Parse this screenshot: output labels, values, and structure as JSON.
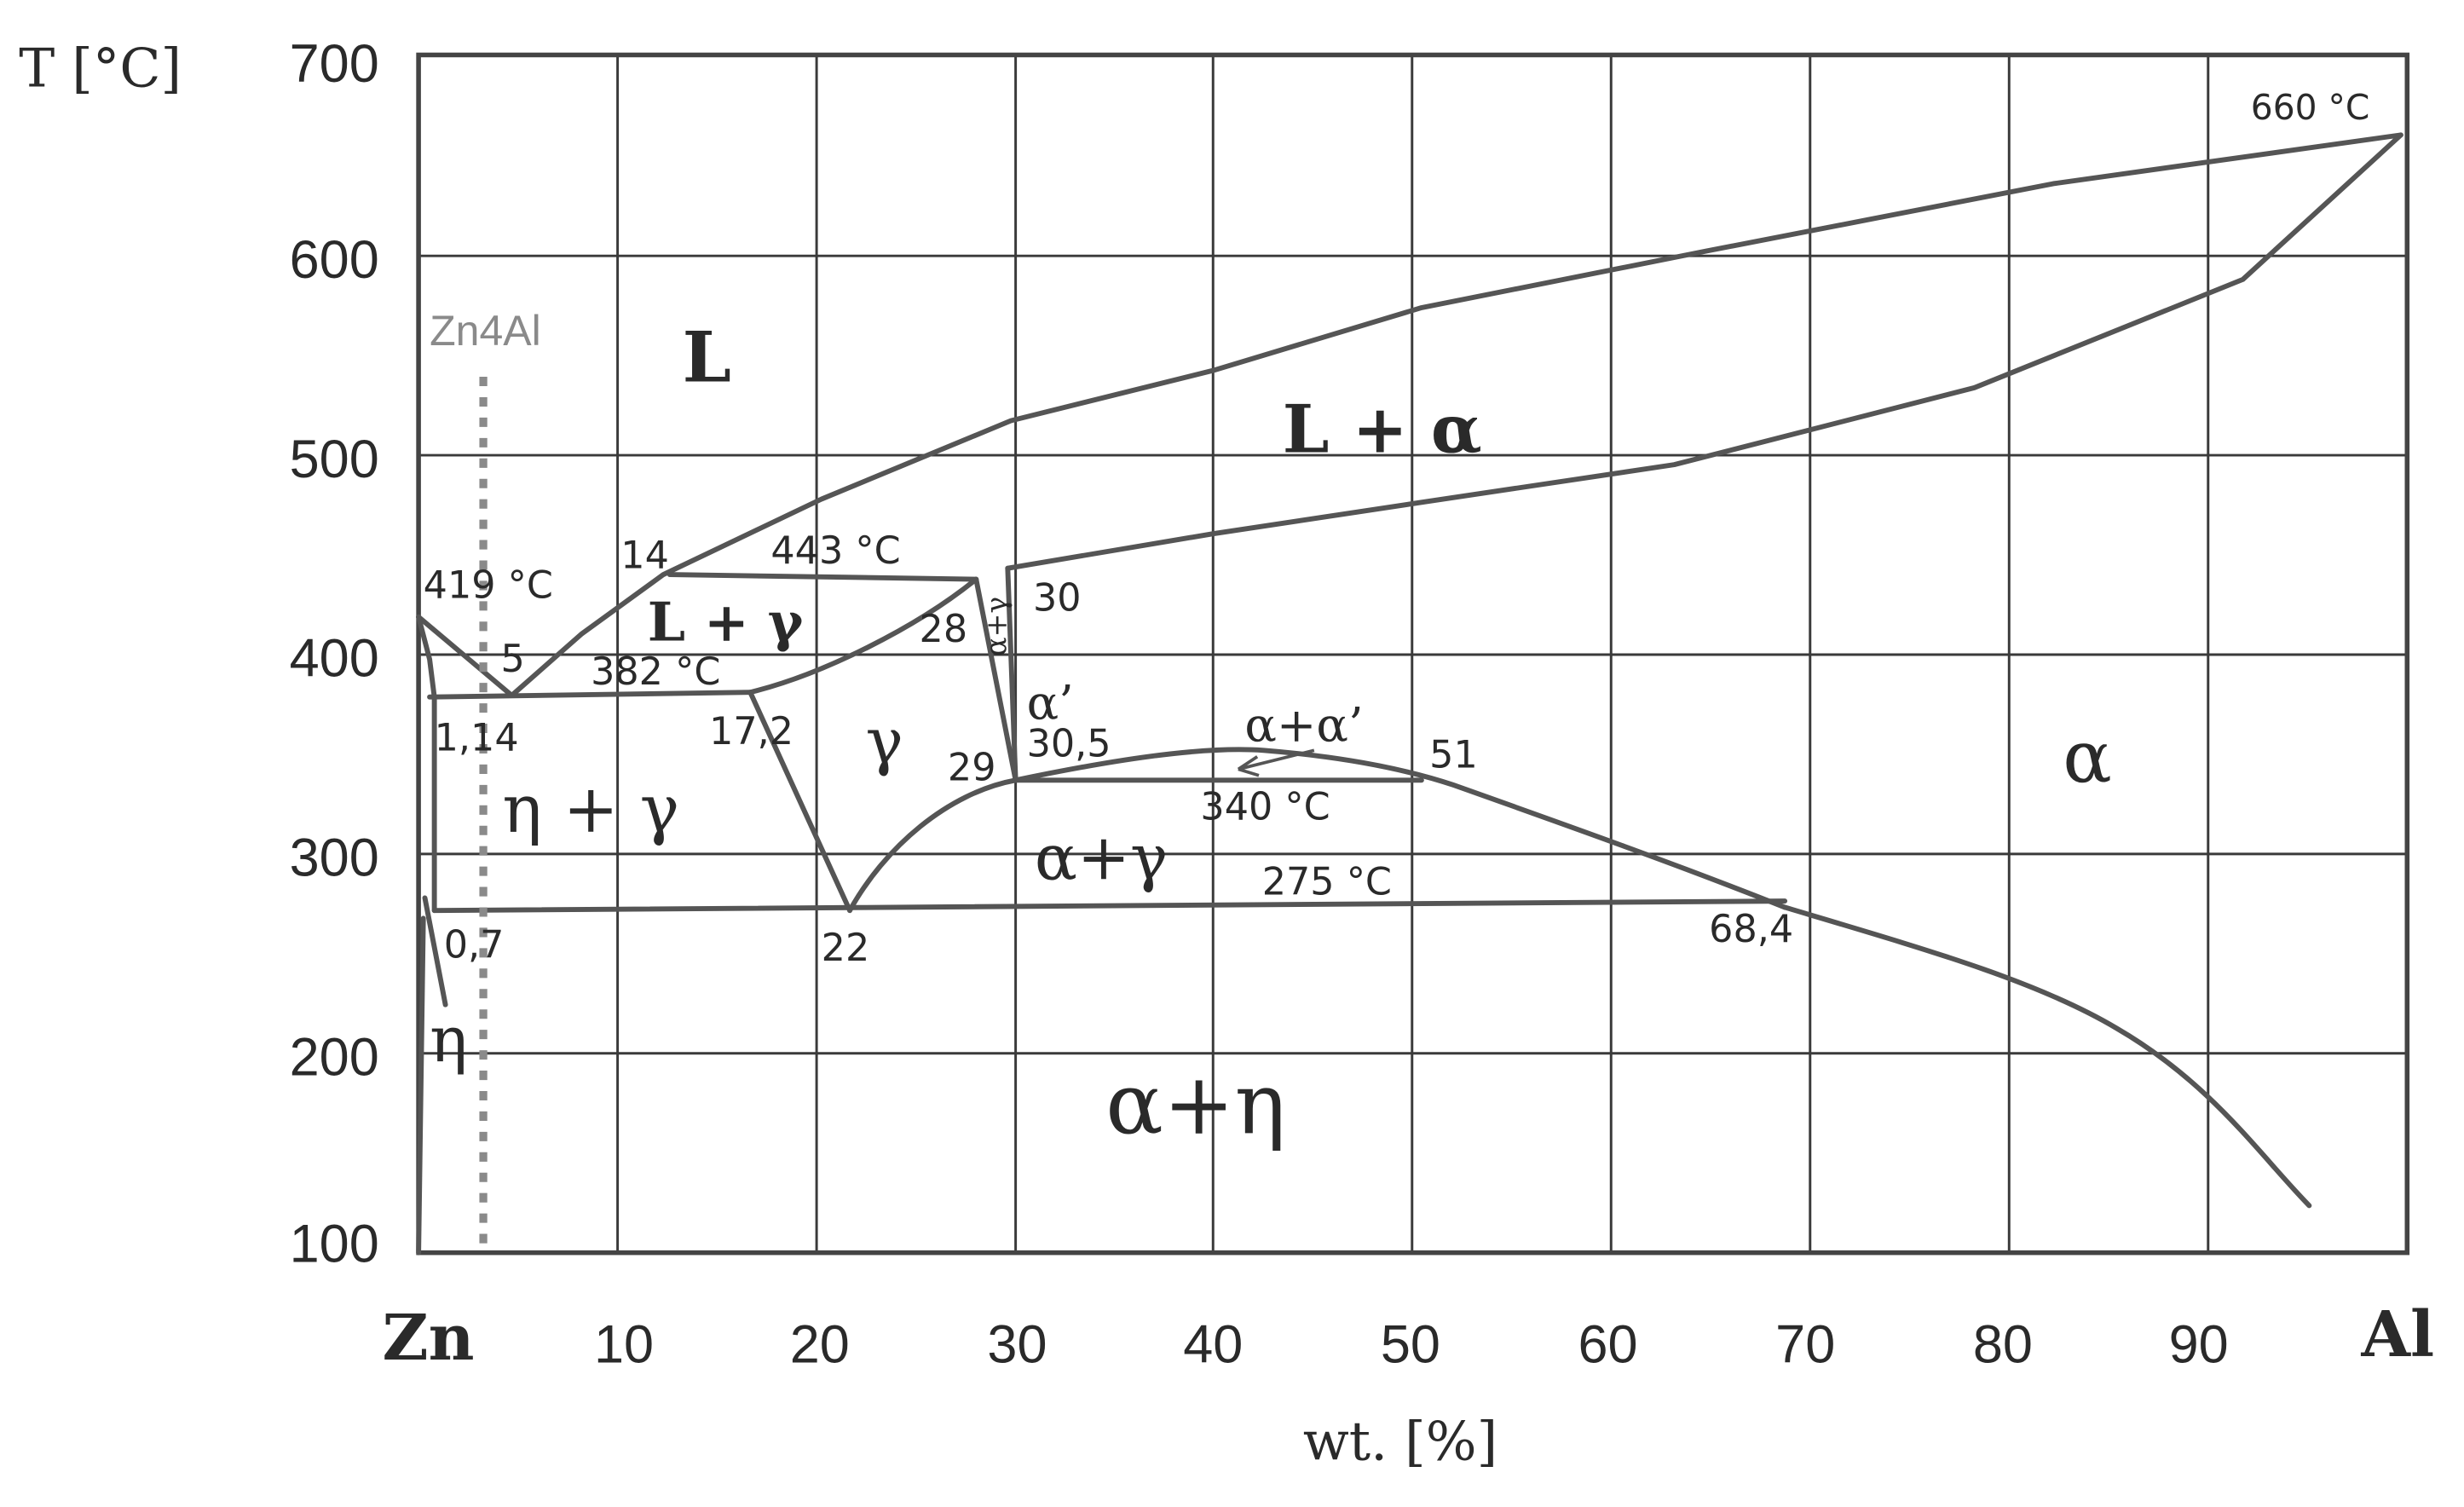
{
  "axes": {
    "y_title": "T [°C]",
    "x_title": "wt. [%]",
    "x_left_element": "Zn",
    "x_right_element": "Al",
    "x_ticks": [
      "10",
      "20",
      "30",
      "40",
      "50",
      "60",
      "70",
      "80",
      "90"
    ],
    "y_ticks": [
      "700",
      "600",
      "500",
      "400",
      "300",
      "200",
      "100"
    ]
  },
  "phases": {
    "L": "L",
    "L_alpha": "L + α",
    "L_gamma": "L + γ",
    "alpha": "α",
    "gamma": "γ",
    "eta_gamma": "η + γ",
    "alpha_gamma": "α+γ",
    "alpha_eta": "α+η",
    "alpha_alpha_prime": "α+α’",
    "alpha_prime": "α’",
    "eta": "η",
    "alpha_plus_gamma_narrow": "α+γ"
  },
  "annotations": {
    "alloy_label": "Zn4Al",
    "t_660": "660 °C",
    "t_443": "443 °C",
    "t_419": "419 °C",
    "t_382": "382 °C",
    "t_340": "340 °C",
    "t_275": "275 °C",
    "c_14": "14",
    "c_5": "5",
    "c_1_14": "1,14",
    "c_17_2": "17,2",
    "c_28": "28",
    "c_30": "30",
    "c_29": "29",
    "c_30_5": "30,5",
    "c_51": "51",
    "c_22": "22",
    "c_0_7": "0,7",
    "c_68_4": "68,4"
  },
  "colors": {
    "line": "#555555",
    "grid": "#3a3a3a",
    "alloy_line": "#8a8a8a",
    "text": "#2a2a2a"
  }
}
